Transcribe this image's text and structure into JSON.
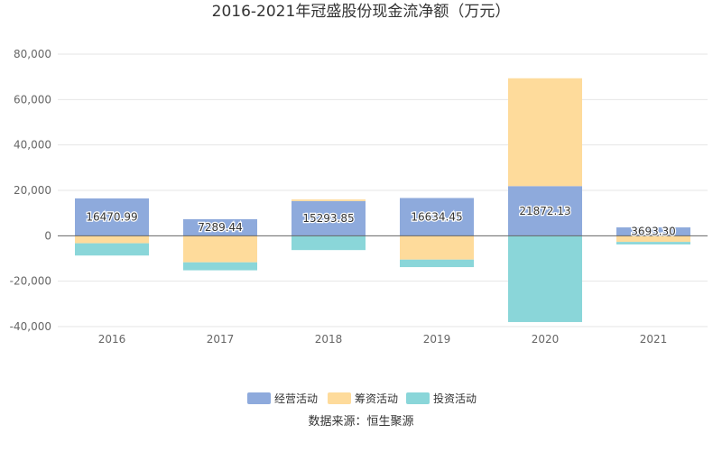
{
  "chart_data": {
    "type": "bar",
    "stacked": true,
    "title": "2016-2021年冠盛股份现金流净额（万元）",
    "categories": [
      "2016",
      "2017",
      "2018",
      "2019",
      "2020",
      "2021"
    ],
    "yticks": [
      "80,000",
      "60,000",
      "40,000",
      "20,000",
      "0",
      "-20,000",
      "-40,000"
    ],
    "ytick_values": [
      80000,
      60000,
      40000,
      20000,
      0,
      -20000,
      -40000
    ],
    "ylim": [
      -40000,
      80000
    ],
    "series": [
      {
        "name": "经营活动",
        "color": "#8eaadc",
        "values": [
          16470.99,
          7289.44,
          15293.85,
          16634.45,
          21872.13,
          3693.3
        ]
      },
      {
        "name": "筹资活动",
        "color": "#fedb9b",
        "values": [
          -3300,
          -11700,
          700,
          -10500,
          47500,
          -2700
        ]
      },
      {
        "name": "投资活动",
        "color": "#8ad6d9",
        "values": [
          -5400,
          -3500,
          -6300,
          -3300,
          -38000,
          -1100
        ]
      }
    ],
    "data_labels": [
      "16470.99",
      "7289.44",
      "15293.85",
      "16634.45",
      "21872.13",
      "3693.30"
    ],
    "legend_position": "bottom",
    "source": "数据来源：恒生聚源"
  }
}
